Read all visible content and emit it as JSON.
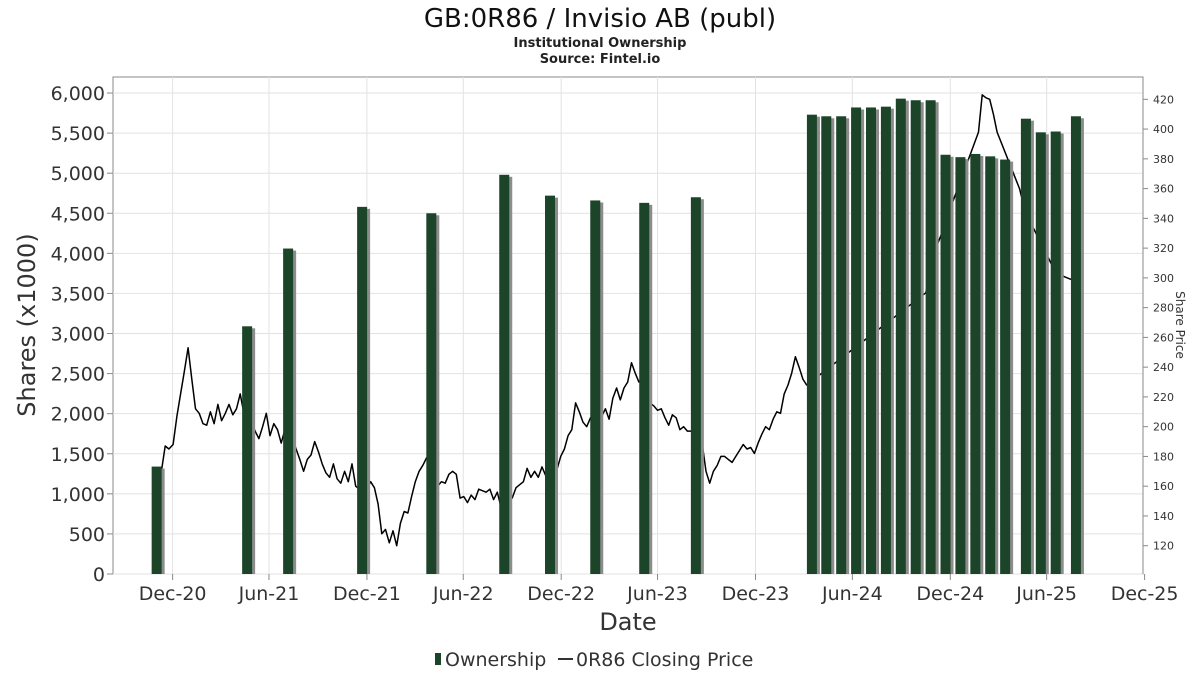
{
  "chart_data": {
    "type": "bar",
    "title": "GB:0R86 / Invisio AB (publ)",
    "subtitle": "Institutional Ownership",
    "source": "Source: Fintel.io",
    "xlabel": "Date",
    "ylabel": "Shares (x1000)",
    "y2label": "Share Price",
    "ylim": [
      0,
      6200
    ],
    "y2lim": [
      101,
      435
    ],
    "xlim": [
      "2020-09-10",
      "2025-12-28"
    ],
    "y_ticks": [
      0,
      500,
      1000,
      1500,
      2000,
      2500,
      3000,
      3500,
      4000,
      4500,
      5000,
      5500,
      6000
    ],
    "y_tick_labels": [
      "0",
      "500",
      "1,000",
      "1,500",
      "2,000",
      "2,500",
      "3,000",
      "3,500",
      "4,000",
      "4,500",
      "5,000",
      "5,500",
      "6,000"
    ],
    "y2_ticks": [
      120,
      140,
      160,
      180,
      200,
      220,
      240,
      260,
      280,
      300,
      320,
      340,
      360,
      380,
      400,
      420
    ],
    "x_ticks": [
      {
        "date": "2020-12-31",
        "label": "Dec-20"
      },
      {
        "date": "2021-06-30",
        "label": "Jun-21"
      },
      {
        "date": "2021-12-31",
        "label": "Dec-21"
      },
      {
        "date": "2022-06-30",
        "label": "Jun-22"
      },
      {
        "date": "2022-12-31",
        "label": "Dec-22"
      },
      {
        "date": "2023-06-30",
        "label": "Jun-23"
      },
      {
        "date": "2023-12-31",
        "label": "Dec-23"
      },
      {
        "date": "2024-06-30",
        "label": "Jun-24"
      },
      {
        "date": "2024-12-31",
        "label": "Dec-24"
      },
      {
        "date": "2025-06-30",
        "label": "Jun-25"
      },
      {
        "date": "2025-12-31",
        "label": "Dec-25"
      }
    ],
    "grid": true,
    "legend_position": "bottom",
    "series": [
      {
        "name": "Ownership",
        "type": "bar",
        "color": "#1b4428",
        "shadow_color": "#8c8c8c",
        "points": [
          {
            "x": "2020-12-01",
            "y": 1340
          },
          {
            "x": "2021-05-20",
            "y": 3090
          },
          {
            "x": "2021-08-05",
            "y": 4060
          },
          {
            "x": "2021-12-22",
            "y": 4580
          },
          {
            "x": "2022-05-01",
            "y": 4500
          },
          {
            "x": "2022-09-15",
            "y": 4980
          },
          {
            "x": "2022-12-10",
            "y": 4720
          },
          {
            "x": "2023-03-05",
            "y": 4660
          },
          {
            "x": "2023-06-05",
            "y": 4630
          },
          {
            "x": "2023-09-10",
            "y": 4700
          },
          {
            "x": "2024-04-15",
            "y": 5730
          },
          {
            "x": "2024-05-12",
            "y": 5710
          },
          {
            "x": "2024-06-09",
            "y": 5710
          },
          {
            "x": "2024-07-07",
            "y": 5820
          },
          {
            "x": "2024-08-04",
            "y": 5820
          },
          {
            "x": "2024-09-01",
            "y": 5830
          },
          {
            "x": "2024-09-29",
            "y": 5930
          },
          {
            "x": "2024-10-27",
            "y": 5910
          },
          {
            "x": "2024-11-24",
            "y": 5910
          },
          {
            "x": "2024-12-22",
            "y": 5230
          },
          {
            "x": "2025-01-19",
            "y": 5200
          },
          {
            "x": "2025-02-16",
            "y": 5240
          },
          {
            "x": "2025-03-16",
            "y": 5210
          },
          {
            "x": "2025-04-13",
            "y": 5170
          },
          {
            "x": "2025-05-22",
            "y": 5680
          },
          {
            "x": "2025-06-19",
            "y": 5510
          },
          {
            "x": "2025-07-17",
            "y": 5520
          },
          {
            "x": "2025-08-24",
            "y": 5710
          }
        ]
      },
      {
        "name": "0R86 Closing Price",
        "type": "line",
        "axis": "right",
        "color": "#000000",
        "points": [
          {
            "x": "2020-12-01",
            "y": 157
          },
          {
            "x": "2020-12-10",
            "y": 170
          },
          {
            "x": "2020-12-17",
            "y": 187
          },
          {
            "x": "2020-12-24",
            "y": 185
          },
          {
            "x": "2021-01-01",
            "y": 188
          },
          {
            "x": "2021-01-08",
            "y": 207
          },
          {
            "x": "2021-01-15",
            "y": 222
          },
          {
            "x": "2021-01-22",
            "y": 237
          },
          {
            "x": "2021-01-29",
            "y": 253
          },
          {
            "x": "2021-02-05",
            "y": 232
          },
          {
            "x": "2021-02-12",
            "y": 212
          },
          {
            "x": "2021-02-19",
            "y": 209
          },
          {
            "x": "2021-02-26",
            "y": 202
          },
          {
            "x": "2021-03-05",
            "y": 201
          },
          {
            "x": "2021-03-12",
            "y": 210
          },
          {
            "x": "2021-03-19",
            "y": 202
          },
          {
            "x": "2021-03-26",
            "y": 215
          },
          {
            "x": "2021-04-02",
            "y": 204
          },
          {
            "x": "2021-04-09",
            "y": 209
          },
          {
            "x": "2021-04-16",
            "y": 215
          },
          {
            "x": "2021-04-23",
            "y": 208
          },
          {
            "x": "2021-04-30",
            "y": 212
          },
          {
            "x": "2021-05-07",
            "y": 222
          },
          {
            "x": "2021-05-14",
            "y": 209
          },
          {
            "x": "2021-05-21",
            "y": 210
          },
          {
            "x": "2021-05-28",
            "y": 203
          },
          {
            "x": "2021-06-04",
            "y": 197
          },
          {
            "x": "2021-06-11",
            "y": 192
          },
          {
            "x": "2021-06-18",
            "y": 200
          },
          {
            "x": "2021-06-25",
            "y": 209
          },
          {
            "x": "2021-07-02",
            "y": 194
          },
          {
            "x": "2021-07-09",
            "y": 202
          },
          {
            "x": "2021-07-16",
            "y": 198
          },
          {
            "x": "2021-07-23",
            "y": 189
          },
          {
            "x": "2021-07-30",
            "y": 198
          },
          {
            "x": "2021-08-06",
            "y": 190
          },
          {
            "x": "2021-08-13",
            "y": 192
          },
          {
            "x": "2021-08-20",
            "y": 185
          },
          {
            "x": "2021-08-27",
            "y": 178
          },
          {
            "x": "2021-09-03",
            "y": 170
          },
          {
            "x": "2021-09-10",
            "y": 178
          },
          {
            "x": "2021-09-17",
            "y": 181
          },
          {
            "x": "2021-09-24",
            "y": 190
          },
          {
            "x": "2021-10-01",
            "y": 183
          },
          {
            "x": "2021-10-08",
            "y": 175
          },
          {
            "x": "2021-10-15",
            "y": 169
          },
          {
            "x": "2021-10-22",
            "y": 166
          },
          {
            "x": "2021-10-29",
            "y": 175
          },
          {
            "x": "2021-11-05",
            "y": 165
          },
          {
            "x": "2021-11-12",
            "y": 162
          },
          {
            "x": "2021-11-19",
            "y": 170
          },
          {
            "x": "2021-11-26",
            "y": 163
          },
          {
            "x": "2021-12-03",
            "y": 175
          },
          {
            "x": "2021-12-10",
            "y": 160
          },
          {
            "x": "2021-12-17",
            "y": 158
          },
          {
            "x": "2021-12-24",
            "y": 161
          },
          {
            "x": "2021-12-31",
            "y": 158
          },
          {
            "x": "2022-01-07",
            "y": 163
          },
          {
            "x": "2022-01-14",
            "y": 159
          },
          {
            "x": "2022-01-21",
            "y": 148
          },
          {
            "x": "2022-01-28",
            "y": 128
          },
          {
            "x": "2022-02-04",
            "y": 131
          },
          {
            "x": "2022-02-11",
            "y": 122
          },
          {
            "x": "2022-02-18",
            "y": 130
          },
          {
            "x": "2022-02-25",
            "y": 120
          },
          {
            "x": "2022-03-04",
            "y": 135
          },
          {
            "x": "2022-03-11",
            "y": 143
          },
          {
            "x": "2022-03-18",
            "y": 142
          },
          {
            "x": "2022-03-25",
            "y": 153
          },
          {
            "x": "2022-04-01",
            "y": 163
          },
          {
            "x": "2022-04-08",
            "y": 170
          },
          {
            "x": "2022-04-15",
            "y": 174
          },
          {
            "x": "2022-04-22",
            "y": 179
          },
          {
            "x": "2022-04-29",
            "y": 177
          },
          {
            "x": "2022-05-06",
            "y": 161
          },
          {
            "x": "2022-05-13",
            "y": 160
          },
          {
            "x": "2022-05-20",
            "y": 163
          },
          {
            "x": "2022-05-27",
            "y": 162
          },
          {
            "x": "2022-06-03",
            "y": 168
          },
          {
            "x": "2022-06-10",
            "y": 170
          },
          {
            "x": "2022-06-17",
            "y": 168
          },
          {
            "x": "2022-06-24",
            "y": 152
          },
          {
            "x": "2022-07-01",
            "y": 153
          },
          {
            "x": "2022-07-08",
            "y": 149
          },
          {
            "x": "2022-07-15",
            "y": 154
          },
          {
            "x": "2022-07-22",
            "y": 151
          },
          {
            "x": "2022-07-29",
            "y": 158
          },
          {
            "x": "2022-08-05",
            "y": 157
          },
          {
            "x": "2022-08-12",
            "y": 156
          },
          {
            "x": "2022-08-19",
            "y": 158
          },
          {
            "x": "2022-08-26",
            "y": 151
          },
          {
            "x": "2022-09-02",
            "y": 156
          },
          {
            "x": "2022-09-09",
            "y": 146
          },
          {
            "x": "2022-09-16",
            "y": 147
          },
          {
            "x": "2022-09-23",
            "y": 155
          },
          {
            "x": "2022-09-30",
            "y": 152
          },
          {
            "x": "2022-10-07",
            "y": 159
          },
          {
            "x": "2022-10-14",
            "y": 161
          },
          {
            "x": "2022-10-21",
            "y": 163
          },
          {
            "x": "2022-10-28",
            "y": 172
          },
          {
            "x": "2022-11-04",
            "y": 166
          },
          {
            "x": "2022-11-11",
            "y": 170
          },
          {
            "x": "2022-11-18",
            "y": 166
          },
          {
            "x": "2022-11-25",
            "y": 173
          },
          {
            "x": "2022-12-02",
            "y": 167
          },
          {
            "x": "2022-12-09",
            "y": 165
          },
          {
            "x": "2022-12-16",
            "y": 168
          },
          {
            "x": "2022-12-23",
            "y": 171
          },
          {
            "x": "2022-12-30",
            "y": 180
          },
          {
            "x": "2023-01-06",
            "y": 185
          },
          {
            "x": "2023-01-13",
            "y": 194
          },
          {
            "x": "2023-01-20",
            "y": 198
          },
          {
            "x": "2023-01-27",
            "y": 216
          },
          {
            "x": "2023-02-03",
            "y": 210
          },
          {
            "x": "2023-02-10",
            "y": 203
          },
          {
            "x": "2023-02-17",
            "y": 200
          },
          {
            "x": "2023-02-24",
            "y": 206
          },
          {
            "x": "2023-03-03",
            "y": 206
          },
          {
            "x": "2023-03-10",
            "y": 210
          },
          {
            "x": "2023-03-17",
            "y": 207
          },
          {
            "x": "2023-03-24",
            "y": 212
          },
          {
            "x": "2023-03-31",
            "y": 205
          },
          {
            "x": "2023-04-07",
            "y": 219
          },
          {
            "x": "2023-04-14",
            "y": 226
          },
          {
            "x": "2023-04-21",
            "y": 218
          },
          {
            "x": "2023-04-28",
            "y": 226
          },
          {
            "x": "2023-05-05",
            "y": 230
          },
          {
            "x": "2023-05-12",
            "y": 243
          },
          {
            "x": "2023-05-19",
            "y": 236
          },
          {
            "x": "2023-05-26",
            "y": 230
          },
          {
            "x": "2023-06-02",
            "y": 232
          },
          {
            "x": "2023-06-09",
            "y": 223
          },
          {
            "x": "2023-06-16",
            "y": 216
          },
          {
            "x": "2023-06-23",
            "y": 214
          },
          {
            "x": "2023-06-30",
            "y": 211
          },
          {
            "x": "2023-07-07",
            "y": 212
          },
          {
            "x": "2023-07-14",
            "y": 206
          },
          {
            "x": "2023-07-21",
            "y": 201
          },
          {
            "x": "2023-07-28",
            "y": 208
          },
          {
            "x": "2023-08-04",
            "y": 206
          },
          {
            "x": "2023-08-11",
            "y": 198
          },
          {
            "x": "2023-08-18",
            "y": 200
          },
          {
            "x": "2023-08-25",
            "y": 197
          },
          {
            "x": "2023-09-01",
            "y": 197
          },
          {
            "x": "2023-09-08",
            "y": 195
          },
          {
            "x": "2023-09-15",
            "y": 196
          },
          {
            "x": "2023-09-22",
            "y": 188
          },
          {
            "x": "2023-09-29",
            "y": 170
          },
          {
            "x": "2023-10-06",
            "y": 162
          },
          {
            "x": "2023-10-13",
            "y": 170
          },
          {
            "x": "2023-10-20",
            "y": 174
          },
          {
            "x": "2023-10-27",
            "y": 180
          },
          {
            "x": "2023-11-03",
            "y": 180
          },
          {
            "x": "2023-11-10",
            "y": 178
          },
          {
            "x": "2023-11-17",
            "y": 176
          },
          {
            "x": "2023-11-24",
            "y": 180
          },
          {
            "x": "2023-12-01",
            "y": 184
          },
          {
            "x": "2023-12-08",
            "y": 188
          },
          {
            "x": "2023-12-15",
            "y": 185
          },
          {
            "x": "2023-12-22",
            "y": 186
          },
          {
            "x": "2023-12-29",
            "y": 182
          },
          {
            "x": "2024-01-05",
            "y": 189
          },
          {
            "x": "2024-01-12",
            "y": 195
          },
          {
            "x": "2024-01-19",
            "y": 200
          },
          {
            "x": "2024-01-26",
            "y": 198
          },
          {
            "x": "2024-02-02",
            "y": 205
          },
          {
            "x": "2024-02-09",
            "y": 210
          },
          {
            "x": "2024-02-16",
            "y": 209
          },
          {
            "x": "2024-02-23",
            "y": 222
          },
          {
            "x": "2024-03-01",
            "y": 228
          },
          {
            "x": "2024-03-08",
            "y": 236
          },
          {
            "x": "2024-03-15",
            "y": 247
          },
          {
            "x": "2024-03-22",
            "y": 240
          },
          {
            "x": "2024-03-29",
            "y": 232
          },
          {
            "x": "2024-04-05",
            "y": 228
          },
          {
            "x": "2024-11-15",
            "y": 290
          },
          {
            "x": "2024-11-22",
            "y": 300
          },
          {
            "x": "2024-11-29",
            "y": 310
          },
          {
            "x": "2024-12-06",
            "y": 322
          },
          {
            "x": "2024-12-13",
            "y": 328
          },
          {
            "x": "2024-12-20",
            "y": 336
          },
          {
            "x": "2025-02-22",
            "y": 398
          },
          {
            "x": "2025-03-01",
            "y": 423
          },
          {
            "x": "2025-03-08",
            "y": 421
          },
          {
            "x": "2025-03-15",
            "y": 420
          },
          {
            "x": "2025-03-22",
            "y": 410
          },
          {
            "x": "2025-03-29",
            "y": 398
          },
          {
            "x": "2025-05-10",
            "y": 360
          },
          {
            "x": "2025-05-17",
            "y": 350
          },
          {
            "x": "2025-05-24",
            "y": 342
          },
          {
            "x": "2025-07-01",
            "y": 315
          },
          {
            "x": "2025-07-08",
            "y": 310
          },
          {
            "x": "2025-07-15",
            "y": 305
          },
          {
            "x": "2025-08-01",
            "y": 301
          },
          {
            "x": "2025-08-08",
            "y": 300
          },
          {
            "x": "2025-08-15",
            "y": 299
          }
        ]
      }
    ]
  }
}
